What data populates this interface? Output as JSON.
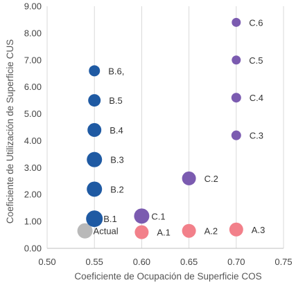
{
  "chart_data": {
    "type": "scatter",
    "xlabel": "Coeficiente de Ocupación de Superficie COS",
    "ylabel": "Coeficiente de Utilización de Superficie CUS",
    "xlim": [
      0.5,
      0.75
    ],
    "ylim": [
      0,
      9
    ],
    "x_ticks": [
      "0.50",
      "0.55",
      "0.60",
      "0.65",
      "0.70",
      "0.75"
    ],
    "y_ticks": [
      "0.00",
      "1.00",
      "2.00",
      "3.00",
      "4.00",
      "5.00",
      "6.00",
      "7.00",
      "8.00",
      "9.00"
    ],
    "grid": "vertical",
    "legend": "none",
    "colors": {
      "Actual": "#b9b9b9",
      "A": "#f2808a",
      "B": "#1f5aa3",
      "C": "#7b5bb0"
    },
    "points": [
      {
        "label": "Actual",
        "group": "Actual",
        "x": 0.54,
        "y": 0.65,
        "size": 11
      },
      {
        "label": "A.1",
        "group": "A",
        "x": 0.6,
        "y": 0.6,
        "size": 10
      },
      {
        "label": "A.2",
        "group": "A",
        "x": 0.65,
        "y": 0.65,
        "size": 10
      },
      {
        "label": "A.3",
        "group": "A",
        "x": 0.7,
        "y": 0.7,
        "size": 10
      },
      {
        "label": "B.1",
        "group": "B",
        "x": 0.55,
        "y": 1.1,
        "size": 12
      },
      {
        "label": "B.2",
        "group": "B",
        "x": 0.55,
        "y": 2.2,
        "size": 11
      },
      {
        "label": "B.3",
        "group": "B",
        "x": 0.55,
        "y": 3.3,
        "size": 11
      },
      {
        "label": "B.4",
        "group": "B",
        "x": 0.55,
        "y": 4.4,
        "size": 10
      },
      {
        "label": "B.5",
        "group": "B",
        "x": 0.55,
        "y": 5.5,
        "size": 9
      },
      {
        "label": "B.6,",
        "group": "B",
        "x": 0.55,
        "y": 6.6,
        "size": 8
      },
      {
        "label": "C.1",
        "group": "C",
        "x": 0.6,
        "y": 1.2,
        "size": 11
      },
      {
        "label": "C.2",
        "group": "C",
        "x": 0.65,
        "y": 2.6,
        "size": 10
      },
      {
        "label": "C.3",
        "group": "C",
        "x": 0.7,
        "y": 4.2,
        "size": 7
      },
      {
        "label": "C.4",
        "group": "C",
        "x": 0.7,
        "y": 5.6,
        "size": 7
      },
      {
        "label": "C.5",
        "group": "C",
        "x": 0.7,
        "y": 7.0,
        "size": 6.5
      },
      {
        "label": "C.6",
        "group": "C",
        "x": 0.7,
        "y": 8.4,
        "size": 6.5
      }
    ]
  }
}
